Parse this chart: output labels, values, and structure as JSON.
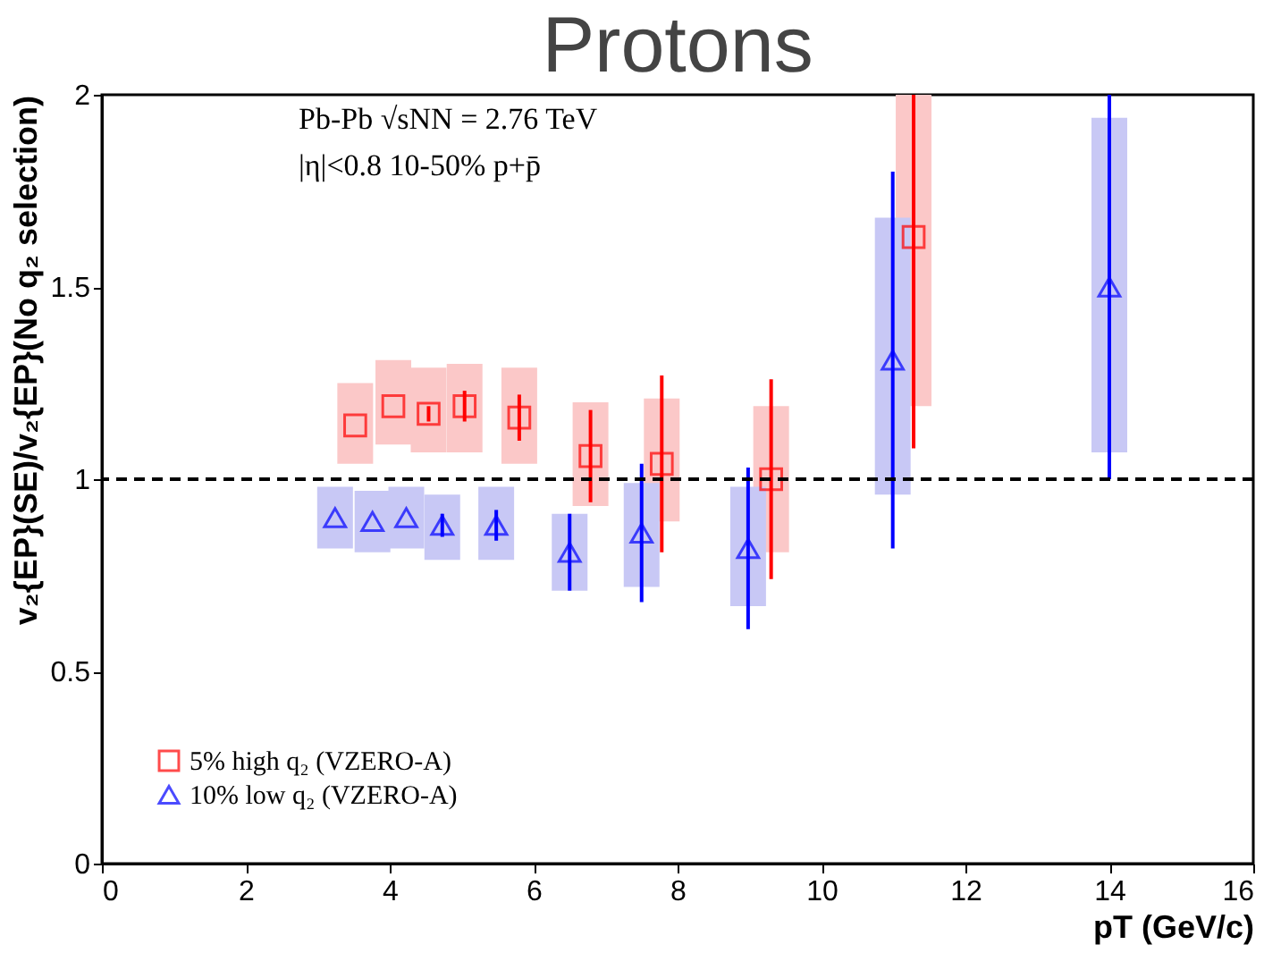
{
  "chart_data": {
    "type": "scatter",
    "title": "Protons",
    "xlabel": "pT (GeV/c)",
    "ylabel": "v₂{EP}(SE)/v₂{EP}(No q₂ selection)",
    "annotations": [
      "Pb-Pb   √sNN = 2.76 TeV",
      "|η|<0.8   10-50%   p+p̄"
    ],
    "series": [
      {
        "type": "bar",
        "color": "#fbc8c8",
        "x": [
          3.52,
          4.05,
          4.54,
          5.04,
          5.8,
          6.79,
          7.78,
          9.3,
          11.28
        ],
        "base": [
          1.04,
          1.09,
          1.07,
          1.07,
          1.04,
          0.93,
          0.89,
          0.81,
          1.19
        ],
        "values": [
          0.21,
          0.22,
          0.22,
          0.23,
          0.25,
          0.27,
          0.32,
          0.38,
          0.81
        ]
      },
      {
        "type": "bar",
        "color": "#c8c8f5",
        "x": [
          3.24,
          3.76,
          4.23,
          4.73,
          5.48,
          6.5,
          7.5,
          8.98,
          10.99,
          14.0
        ],
        "base": [
          0.82,
          0.81,
          0.82,
          0.79,
          0.79,
          0.71,
          0.72,
          0.67,
          0.96,
          1.07
        ],
        "values": [
          0.16,
          0.16,
          0.16,
          0.17,
          0.19,
          0.2,
          0.27,
          0.31,
          0.72,
          0.87
        ]
      },
      {
        "name": "5% high q₂ (VZERO-A)",
        "color": "#ff0000",
        "marker": "square",
        "x": [
          3.52,
          4.05,
          4.54,
          5.04,
          5.8,
          6.79,
          7.78,
          9.3,
          11.28
        ],
        "values": [
          1.14,
          1.19,
          1.17,
          1.19,
          1.16,
          1.06,
          1.04,
          1.0,
          1.63
        ],
        "errors": [
          null,
          null,
          0.02,
          0.04,
          0.06,
          0.12,
          0.23,
          0.26,
          [
            1.08,
            2.0
          ]
        ]
      },
      {
        "name": "10% low q₂ (VZERO-A)",
        "color": "#0000ff",
        "marker": "triangle",
        "x": [
          3.24,
          3.76,
          4.23,
          4.73,
          5.48,
          6.5,
          7.5,
          8.98,
          10.99,
          14.0
        ],
        "values": [
          0.9,
          0.89,
          0.9,
          0.88,
          0.88,
          0.81,
          0.86,
          0.82,
          1.31,
          1.5
        ],
        "errors": [
          null,
          null,
          null,
          0.03,
          0.04,
          0.1,
          0.18,
          0.21,
          0.49,
          [
            1.0,
            2.0
          ]
        ]
      }
    ],
    "xlim": [
      0,
      16
    ],
    "xticks": [
      0,
      2,
      4,
      6,
      8,
      10,
      12,
      14,
      16
    ],
    "ylim": [
      0,
      2
    ],
    "yticks": [
      0,
      0.5,
      1,
      1.5,
      2
    ],
    "ref_lines": [
      {
        "axis": "y",
        "value": 1,
        "color": "#000000",
        "line_style": "dashed"
      }
    ],
    "grid": false,
    "legend": "bottom left"
  }
}
